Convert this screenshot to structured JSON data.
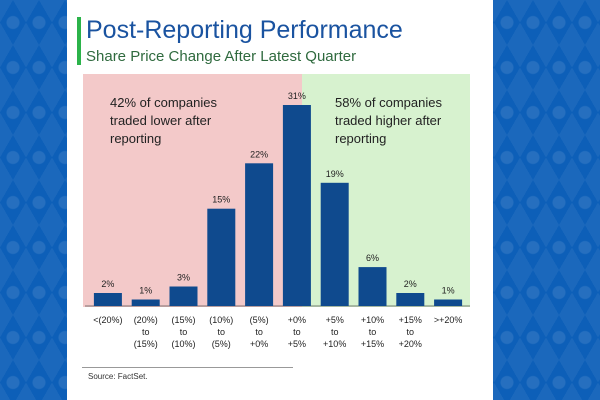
{
  "header": {
    "title": "Post-Reporting Performance",
    "subtitle": "Share Price Change After Latest Quarter"
  },
  "annotations": {
    "negative": "42% of companies traded lower after reporting",
    "positive": "58% of companies traded higher after reporting"
  },
  "footer": {
    "source": "Source: FactSet."
  },
  "colors": {
    "bar": "#0f4a8e",
    "negative_zone": "#f3c9c9",
    "positive_zone": "#d7f2cf",
    "title": "#1a53a0",
    "accent": "#2bb34a"
  },
  "chart_data": {
    "type": "bar",
    "title": "Post-Reporting Performance",
    "subtitle": "Share Price Change After Latest Quarter",
    "categories": [
      [
        "<(20%)"
      ],
      [
        "(20%)",
        "to",
        "(15%)"
      ],
      [
        "(15%)",
        "to",
        "(10%)"
      ],
      [
        "(10%)",
        "to",
        "(5%)"
      ],
      [
        "(5%)",
        "to",
        "+0%"
      ],
      [
        "+0%",
        "to",
        "+5%"
      ],
      [
        "+5%",
        "to",
        "+10%"
      ],
      [
        "+10%",
        "to",
        "+15%"
      ],
      [
        "+15%",
        "to",
        "+20%"
      ],
      [
        ">+20%"
      ]
    ],
    "values": [
      2,
      1,
      3,
      15,
      22,
      31,
      19,
      6,
      2,
      1
    ],
    "value_labels": [
      "2%",
      "1%",
      "3%",
      "15%",
      "22%",
      "31%",
      "19%",
      "6%",
      "2%",
      "1%"
    ],
    "xlabel": "",
    "ylabel": "",
    "ylim": [
      0,
      33
    ],
    "grid": false,
    "legend": "none"
  }
}
